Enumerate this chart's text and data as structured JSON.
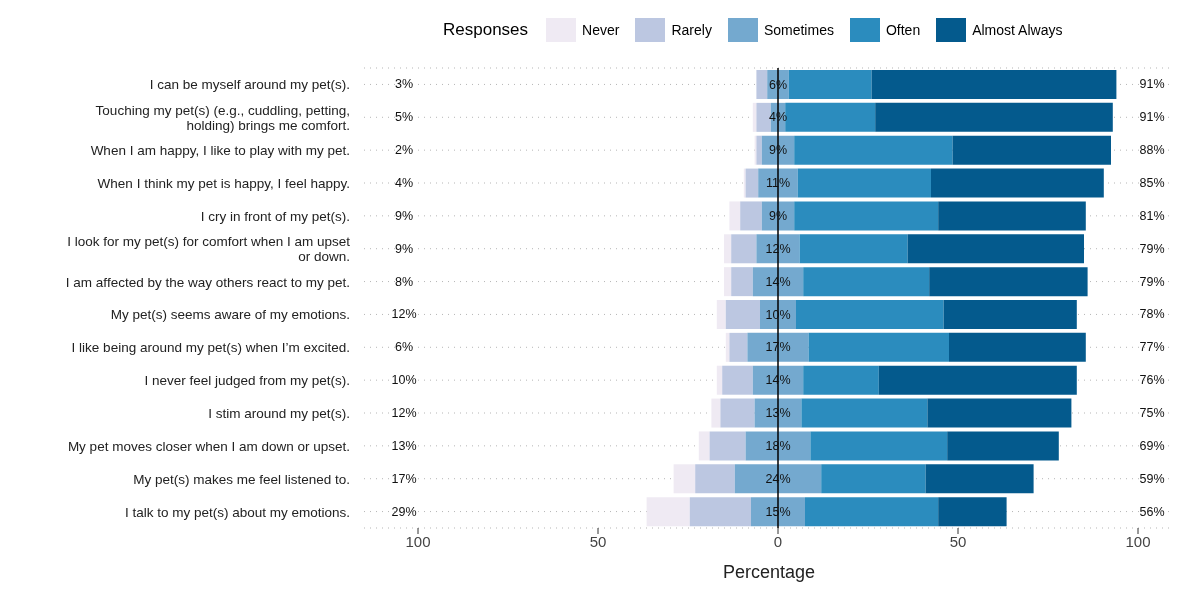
{
  "chart_data": {
    "type": "bar",
    "orientation": "horizontal",
    "legend_title": "Responses",
    "xlabel": "Percentage",
    "categories": [
      "I can be myself around my pet(s).",
      "Touching my pet(s) (e.g., cuddling, petting, holding) brings me comfort.",
      "When I am happy, I like to play with my pet.",
      "When I think my pet is happy, I feel happy.",
      "I cry in front of my pet(s).",
      "I look for my pet(s) for comfort when I am upset or down.",
      "I am affected by the way others react to my pet.",
      "My pet(s) seems aware of my emotions.",
      "I like being around my pet(s) when I’m excited.",
      "I never feel judged from my pet(s).",
      "I stim around my pet(s).",
      "My pet moves closer when I am down or upset.",
      "My pet(s) makes me feel listened to.",
      "I talk to my pet(s) about my emotions."
    ],
    "series": [
      {
        "name": "Never",
        "color": "#efeaf3",
        "values": [
          null,
          1,
          0.5,
          0.5,
          3,
          2,
          2,
          2.5,
          1,
          1.5,
          2.5,
          3,
          6,
          12
        ],
        "base": [
          null,
          -7,
          -6.5,
          -9.5,
          -13.5,
          -15,
          -15,
          -17,
          -14.5,
          -17,
          -18.5,
          -22,
          -29,
          -36.5
        ]
      },
      {
        "name": "Rarely",
        "color": "#bcc7e1",
        "values": [
          3,
          4,
          1.5,
          3.5,
          6,
          7,
          6,
          9.5,
          5,
          8.5,
          9.5,
          10,
          11,
          17
        ],
        "base": [
          -6,
          -6,
          -6,
          -9,
          -10.5,
          -13,
          -13,
          -14.5,
          -13.5,
          -15.5,
          -16,
          -19,
          -23,
          -24.5
        ]
      },
      {
        "name": "Sometimes",
        "color": "#74a9cf",
        "values": [
          6,
          4,
          9,
          11,
          9,
          12,
          14,
          10,
          17,
          14,
          13,
          18,
          24,
          15
        ],
        "base": [
          -3,
          -2,
          -4.5,
          -5.5,
          -4.5,
          -6,
          -7,
          -5,
          -8.5,
          -7,
          -6.5,
          -9,
          -12,
          -7.5
        ],
        "value_labels": [
          "6%",
          "4%",
          "9%",
          "11%",
          "9%",
          "12%",
          "14%",
          "10%",
          "17%",
          "14%",
          "13%",
          "18%",
          "24%",
          "15%"
        ]
      },
      {
        "name": "Often",
        "color": "#2b8cbe",
        "values": [
          23,
          25,
          44,
          37,
          40,
          30,
          35,
          41,
          39,
          21,
          35,
          38,
          29,
          37
        ],
        "base": [
          3,
          2,
          4.5,
          5.5,
          4.5,
          6,
          7,
          5,
          8.5,
          7,
          6.5,
          9,
          12,
          7.5
        ]
      },
      {
        "name": "Almost Always",
        "color": "#045a8d",
        "values": [
          68,
          66,
          44,
          48,
          41,
          49,
          44,
          37,
          38,
          55,
          40,
          31,
          30,
          19
        ],
        "base": [
          26,
          27,
          48.5,
          42.5,
          44.5,
          36,
          42,
          46,
          47.5,
          28,
          41.5,
          47,
          41,
          44.5
        ]
      }
    ],
    "annotations": [
      "3%",
      "5%",
      "2%",
      "4%",
      "9%",
      "9%",
      "8%",
      "12%",
      "6%",
      "10%",
      "12%",
      "13%",
      "17%",
      "29%",
      "91%",
      "91%",
      "88%",
      "85%",
      "81%",
      "79%",
      "79%",
      "78%",
      "77%",
      "76%",
      "75%",
      "69%",
      "59%",
      "56%"
    ],
    "xlim": [
      -115,
      110
    ],
    "xticks": [
      {
        "value": -100,
        "label": "100"
      },
      {
        "value": -50,
        "label": "50"
      },
      0,
      50,
      {
        "value": 100,
        "label": "100"
      }
    ],
    "ref_lines": [
      {
        "axis": "x",
        "value": 0,
        "color": "#000000"
      }
    ],
    "grid": "y",
    "legend": "top"
  }
}
